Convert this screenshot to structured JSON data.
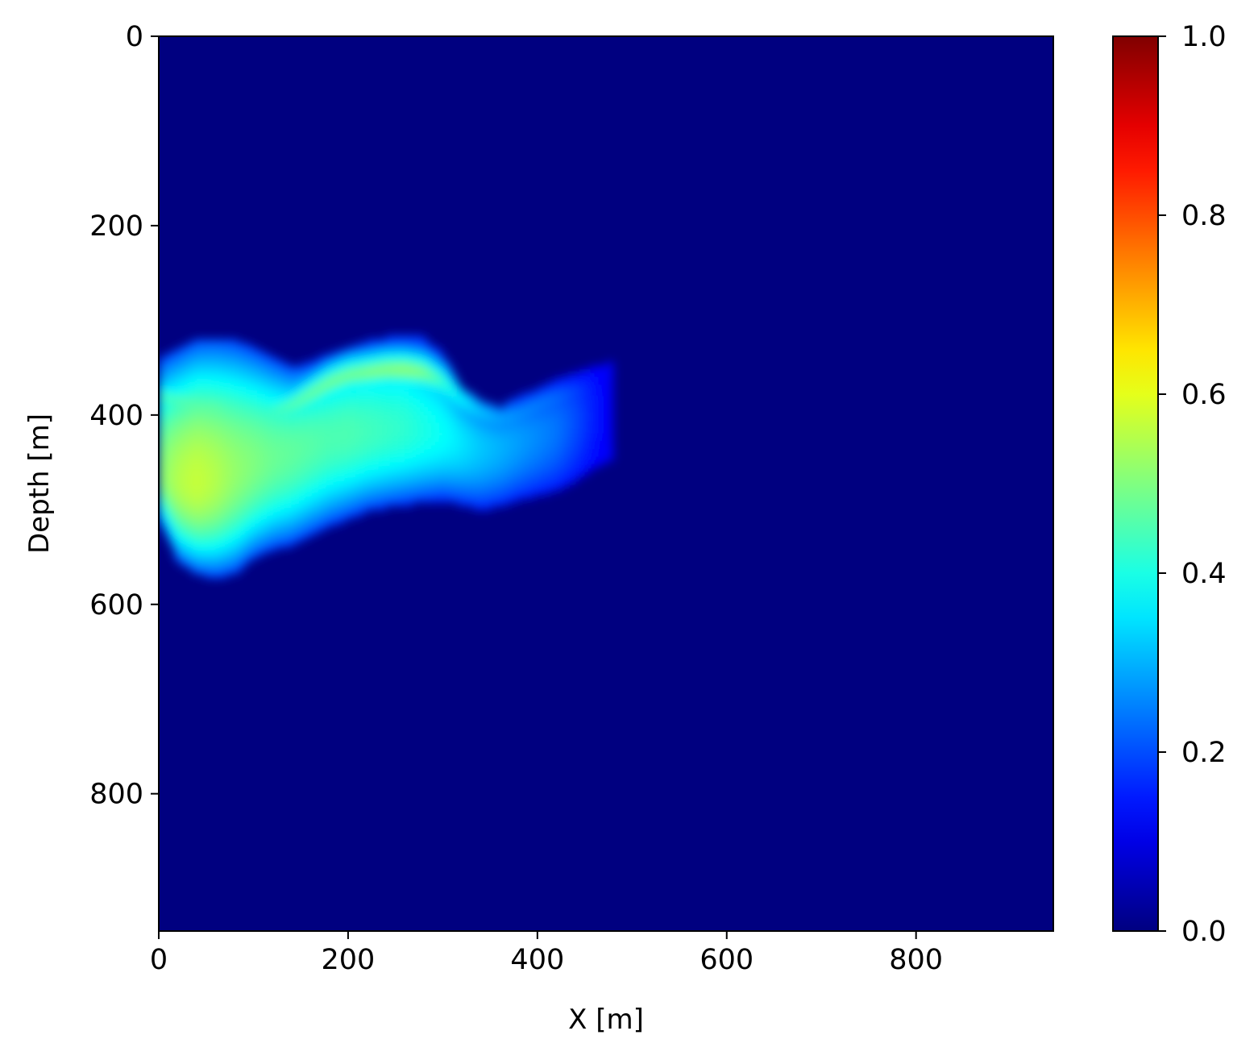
{
  "chart_data": {
    "type": "heatmap",
    "title": "",
    "xlabel": "X [m]",
    "ylabel": "Depth [m]",
    "xlim": [
      0,
      945
    ],
    "ylim": [
      945,
      0
    ],
    "y_inverted": true,
    "x_ticks": [
      0,
      200,
      400,
      600,
      800
    ],
    "y_ticks": [
      0,
      200,
      400,
      600,
      800
    ],
    "x_tick_labels": [
      "0",
      "200",
      "400",
      "600",
      "800"
    ],
    "y_tick_labels": [
      "0",
      "200",
      "400",
      "600",
      "800"
    ],
    "grid": false,
    "colormap": "jet",
    "colorbar": {
      "range": [
        0.0,
        1.0
      ],
      "ticks": [
        0.0,
        0.2,
        0.4,
        0.6,
        0.8,
        1.0
      ],
      "tick_labels": [
        "0.0",
        "0.2",
        "0.4",
        "0.6",
        "0.8",
        "1.0"
      ]
    },
    "background_value": 0.0,
    "plume": {
      "description_values": "approximate field values of the plume; all other cells are 0.0",
      "x_columns_m": [
        0,
        20,
        40,
        60,
        80,
        100,
        120,
        140,
        160,
        180,
        200,
        220,
        240,
        260,
        280,
        300,
        320,
        340,
        360,
        380,
        400,
        420,
        440,
        460,
        480
      ],
      "top_depth_m": [
        340,
        330,
        320,
        318,
        320,
        328,
        338,
        348,
        345,
        335,
        328,
        322,
        318,
        315,
        318,
        335,
        370,
        385,
        392,
        380,
        372,
        362,
        355,
        348,
        345
      ],
      "bottom_depth_m": [
        510,
        555,
        568,
        572,
        568,
        552,
        543,
        538,
        528,
        518,
        510,
        502,
        498,
        495,
        492,
        490,
        495,
        500,
        497,
        490,
        485,
        480,
        470,
        455,
        445
      ],
      "core_depth_m": [
        465,
        470,
        472,
        468,
        460,
        452,
        446,
        440,
        432,
        425,
        420,
        418,
        416,
        415,
        417,
        420,
        428,
        433,
        433,
        428,
        422,
        415,
        405,
        400,
        395
      ],
      "peak_value": [
        0.5,
        0.55,
        0.57,
        0.55,
        0.52,
        0.5,
        0.48,
        0.47,
        0.46,
        0.45,
        0.45,
        0.44,
        0.43,
        0.42,
        0.4,
        0.38,
        0.35,
        0.32,
        0.3,
        0.28,
        0.26,
        0.24,
        0.2,
        0.15,
        0.1
      ],
      "upper_band_depth_m": [
        380,
        385,
        388,
        390,
        393,
        398,
        396,
        390,
        378,
        366,
        358,
        355,
        352,
        352,
        355,
        365,
        385,
        398,
        405,
        400,
        390,
        382,
        375,
        370,
        365
      ],
      "upper_band_value": [
        0.45,
        0.47,
        0.48,
        0.47,
        0.45,
        0.43,
        0.45,
        0.48,
        0.5,
        0.51,
        0.51,
        0.52,
        0.53,
        0.54,
        0.52,
        0.45,
        0.38,
        0.33,
        0.3,
        0.28,
        0.26,
        0.24,
        0.2,
        0.15,
        0.1
      ]
    }
  }
}
